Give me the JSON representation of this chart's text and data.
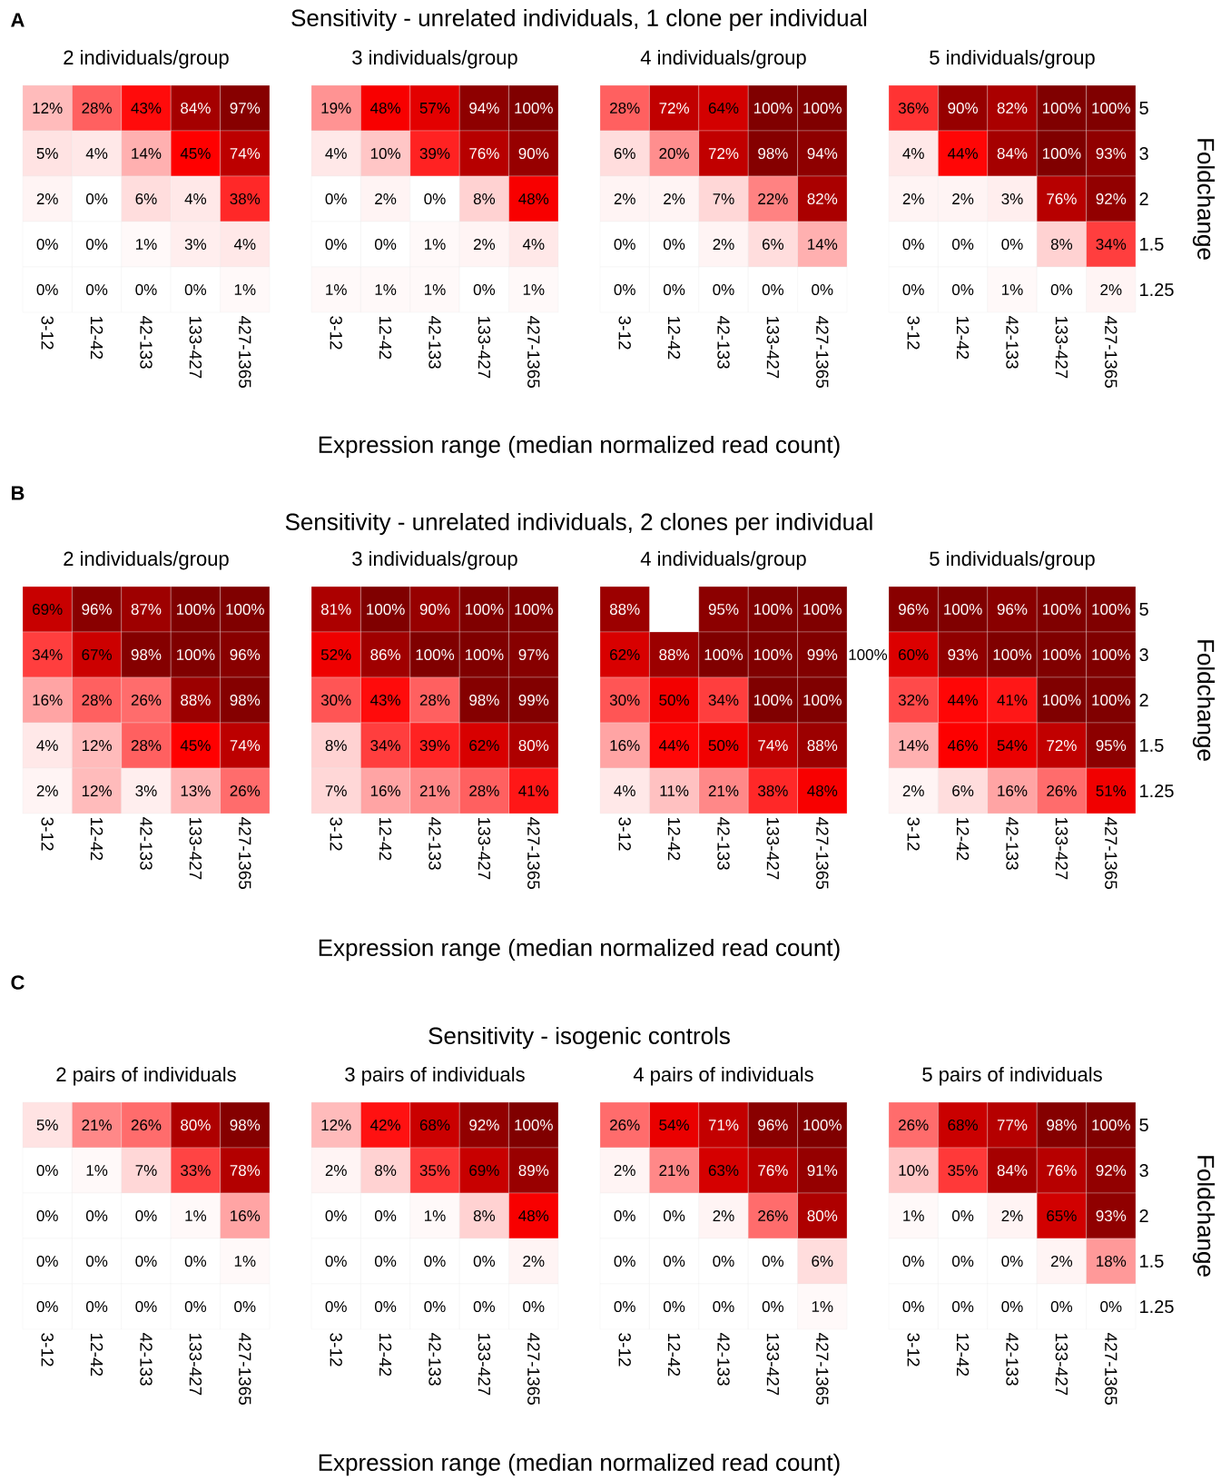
{
  "chart_data": [
    {
      "type": "heatmap",
      "title": "2 individuals/group",
      "annotations": [
        "A",
        "Sensitivity - unrelated individuals, 1 clone per individual"
      ],
      "xlabel": "Expression range (median normalized read count)",
      "tick_labels": "x",
      "categories": [
        "3-12",
        "12-42",
        "42-133",
        "133-427",
        "427-1365"
      ],
      "y_categories": [
        "5",
        "3",
        "2",
        "1.5",
        "1.25"
      ],
      "cells": [
        [
          12,
          28,
          43,
          84,
          97
        ],
        [
          5,
          4,
          14,
          45,
          74
        ],
        [
          2,
          0,
          6,
          4,
          38
        ],
        [
          0,
          0,
          1,
          3,
          4
        ],
        [
          0,
          0,
          0,
          0,
          1
        ]
      ],
      "cell_labels": [
        [
          "12%",
          "28%",
          "43%",
          "84%",
          "97%"
        ],
        [
          "5%",
          "4%",
          "14%",
          "45%",
          "74%"
        ],
        [
          "2%",
          "0%",
          "6%",
          "4%",
          "38%"
        ],
        [
          "0%",
          "0%",
          "1%",
          "3%",
          "4%"
        ],
        [
          "0%",
          "0%",
          "0%",
          "0%",
          "1%"
        ]
      ]
    },
    {
      "type": "heatmap",
      "title": "3 individuals/group",
      "tick_labels": "x",
      "categories": [
        "3-12",
        "12-42",
        "42-133",
        "133-427",
        "427-1365"
      ],
      "y_categories": [
        "5",
        "3",
        "2",
        "1.5",
        "1.25"
      ],
      "cells": [
        [
          19,
          48,
          57,
          94,
          100
        ],
        [
          4,
          10,
          39,
          76,
          90
        ],
        [
          0,
          2,
          0,
          8,
          48
        ],
        [
          0,
          0,
          1,
          2,
          4
        ],
        [
          1,
          1,
          1,
          0,
          1
        ]
      ],
      "cell_labels": [
        [
          "19%",
          "48%",
          "57%",
          "94%",
          "100%"
        ],
        [
          "4%",
          "10%",
          "39%",
          "76%",
          "90%"
        ],
        [
          "0%",
          "2%",
          "0%",
          "8%",
          "48%"
        ],
        [
          "0%",
          "0%",
          "1%",
          "2%",
          "4%"
        ],
        [
          "1%",
          "1%",
          "1%",
          "0%",
          "1%"
        ]
      ]
    },
    {
      "type": "heatmap",
      "title": "4 individuals/group",
      "tick_labels": "x",
      "categories": [
        "3-12",
        "12-42",
        "42-133",
        "133-427",
        "427-1365"
      ],
      "y_categories": [
        "5",
        "3",
        "2",
        "1.5",
        "1.25"
      ],
      "cells": [
        [
          28,
          72,
          64,
          100,
          100
        ],
        [
          6,
          20,
          72,
          98,
          94
        ],
        [
          2,
          2,
          7,
          22,
          82
        ],
        [
          0,
          0,
          2,
          6,
          14
        ],
        [
          0,
          0,
          0,
          0,
          0
        ]
      ],
      "cell_labels": [
        [
          "28%",
          "72%",
          "64%",
          "100%",
          "100%"
        ],
        [
          "6%",
          "20%",
          "72%",
          "98%",
          "94%"
        ],
        [
          "2%",
          "2%",
          "7%",
          "22%",
          "82%"
        ],
        [
          "0%",
          "0%",
          "2%",
          "6%",
          "14%"
        ],
        [
          "0%",
          "0%",
          "0%",
          "0%",
          "0%"
        ]
      ]
    },
    {
      "type": "heatmap",
      "title": "5 individuals/group",
      "ylabel": "Foldchange",
      "categories": [
        "3-12",
        "12-42",
        "42-133",
        "133-427",
        "427-1365"
      ],
      "y_categories": [
        "5",
        "3",
        "2",
        "1.5",
        "1.25"
      ],
      "cells": [
        [
          36,
          90,
          82,
          100,
          100
        ],
        [
          4,
          44,
          84,
          100,
          93
        ],
        [
          2,
          2,
          3,
          76,
          92
        ],
        [
          0,
          0,
          0,
          8,
          34
        ],
        [
          0,
          0,
          1,
          0,
          2
        ]
      ],
      "cell_labels": [
        [
          "36%",
          "90%",
          "82%",
          "100%",
          "100%"
        ],
        [
          "4%",
          "44%",
          "84%",
          "100%",
          "93%"
        ],
        [
          "2%",
          "2%",
          "3%",
          "76%",
          "92%"
        ],
        [
          "0%",
          "0%",
          "0%",
          "8%",
          "34%"
        ],
        [
          "0%",
          "0%",
          "1%",
          "0%",
          "2%"
        ]
      ]
    },
    {
      "type": "heatmap",
      "title": "2 individuals/group",
      "annotations": [
        "B",
        "Sensitivity - unrelated individuals, 2 clones per individual"
      ],
      "xlabel": "Expression range (median normalized read count)",
      "tick_labels": "x",
      "categories": [
        "3-12",
        "12-42",
        "42-133",
        "133-427",
        "427-1365"
      ],
      "y_categories": [
        "5",
        "3",
        "2",
        "1.5",
        "1.25"
      ],
      "cells": [
        [
          69,
          96,
          87,
          100,
          100
        ],
        [
          34,
          67,
          98,
          100,
          96
        ],
        [
          16,
          28,
          26,
          88,
          98
        ],
        [
          4,
          12,
          28,
          45,
          74
        ],
        [
          2,
          12,
          3,
          13,
          26
        ]
      ],
      "cell_labels": [
        [
          "69%",
          "96%",
          "87%",
          "100%",
          "100%"
        ],
        [
          "34%",
          "67%",
          "98%",
          "100%",
          "96%"
        ],
        [
          "16%",
          "28%",
          "26%",
          "88%",
          "98%"
        ],
        [
          "4%",
          "12%",
          "28%",
          "45%",
          "74%"
        ],
        [
          "2%",
          "12%",
          "3%",
          "13%",
          "26%"
        ]
      ]
    },
    {
      "type": "heatmap",
      "title": "3 individuals/group",
      "tick_labels": "x",
      "categories": [
        "3-12",
        "12-42",
        "42-133",
        "133-427",
        "427-1365"
      ],
      "y_categories": [
        "5",
        "3",
        "2",
        "1.5",
        "1.25"
      ],
      "cells": [
        [
          81,
          100,
          90,
          100,
          100
        ],
        [
          52,
          86,
          100,
          100,
          97
        ],
        [
          30,
          43,
          28,
          98,
          99
        ],
        [
          8,
          34,
          39,
          62,
          80
        ],
        [
          7,
          16,
          21,
          28,
          41
        ]
      ],
      "cell_labels": [
        [
          "81%",
          "100%",
          "90%",
          "100%",
          "100%"
        ],
        [
          "52%",
          "86%",
          "100%",
          "100%",
          "97%"
        ],
        [
          "30%",
          "43%",
          "28%",
          "98%",
          "99%"
        ],
        [
          "8%",
          "34%",
          "39%",
          "62%",
          "80%"
        ],
        [
          "7%",
          "16%",
          "21%",
          "28%",
          "41%"
        ]
      ]
    },
    {
      "type": "heatmap",
      "title": "4 individuals/group",
      "tick_labels": "x",
      "annotations": [
        "100%"
      ],
      "categories": [
        "3-12",
        "12-42",
        "42-133",
        "133-427",
        "427-1365"
      ],
      "y_categories": [
        "5",
        "3",
        "2",
        "1.5",
        "1.25"
      ],
      "cells": [
        [
          88,
          null,
          95,
          100,
          100
        ],
        [
          62,
          88,
          100,
          100,
          99
        ],
        [
          30,
          50,
          34,
          100,
          100
        ],
        [
          16,
          44,
          50,
          74,
          88
        ],
        [
          4,
          11,
          21,
          38,
          48
        ]
      ],
      "cell_labels": [
        [
          "88%",
          null,
          "95%",
          "100%",
          "100%"
        ],
        [
          "62%",
          "88%",
          "100%",
          "100%",
          "99%"
        ],
        [
          "30%",
          "50%",
          "34%",
          "100%",
          "100%"
        ],
        [
          "16%",
          "44%",
          "50%",
          "74%",
          "88%"
        ],
        [
          "4%",
          "11%",
          "21%",
          "38%",
          "48%"
        ]
      ]
    },
    {
      "type": "heatmap",
      "title": "5 individuals/group",
      "ylabel": "Foldchange",
      "categories": [
        "3-12",
        "12-42",
        "42-133",
        "133-427",
        "427-1365"
      ],
      "y_categories": [
        "5",
        "3",
        "2",
        "1.5",
        "1.25"
      ],
      "cells": [
        [
          96,
          100,
          96,
          100,
          100
        ],
        [
          60,
          93,
          100,
          100,
          100
        ],
        [
          32,
          44,
          41,
          100,
          100
        ],
        [
          14,
          46,
          54,
          72,
          95
        ],
        [
          2,
          6,
          16,
          26,
          51
        ]
      ],
      "cell_labels": [
        [
          "96%",
          "100%",
          "96%",
          "100%",
          "100%"
        ],
        [
          "60%",
          "93%",
          "100%",
          "100%",
          "100%"
        ],
        [
          "32%",
          "44%",
          "41%",
          "100%",
          "100%"
        ],
        [
          "14%",
          "46%",
          "54%",
          "72%",
          "95%"
        ],
        [
          "2%",
          "6%",
          "16%",
          "26%",
          "51%"
        ]
      ]
    },
    {
      "type": "heatmap",
      "title": "2 pairs of individuals",
      "annotations": [
        "C",
        "Sensitivity - isogenic controls"
      ],
      "xlabel": "Expression range (median normalized read count)",
      "tick_labels": "x",
      "categories": [
        "3-12",
        "12-42",
        "42-133",
        "133-427",
        "427-1365"
      ],
      "y_categories": [
        "5",
        "3",
        "2",
        "1.5",
        "1.25"
      ],
      "cells": [
        [
          5,
          21,
          26,
          80,
          98
        ],
        [
          0,
          1,
          7,
          33,
          78
        ],
        [
          0,
          0,
          0,
          1,
          16
        ],
        [
          0,
          0,
          0,
          0,
          1
        ],
        [
          0,
          0,
          0,
          0,
          0
        ]
      ],
      "cell_labels": [
        [
          "5%",
          "21%",
          "26%",
          "80%",
          "98%"
        ],
        [
          "0%",
          "1%",
          "7%",
          "33%",
          "78%"
        ],
        [
          "0%",
          "0%",
          "0%",
          "1%",
          "16%"
        ],
        [
          "0%",
          "0%",
          "0%",
          "0%",
          "1%"
        ],
        [
          "0%",
          "0%",
          "0%",
          "0%",
          "0%"
        ]
      ]
    },
    {
      "type": "heatmap",
      "title": "3 pairs of individuals",
      "tick_labels": "x",
      "categories": [
        "3-12",
        "12-42",
        "42-133",
        "133-427",
        "427-1365"
      ],
      "y_categories": [
        "5",
        "3",
        "2",
        "1.5",
        "1.25"
      ],
      "cells": [
        [
          12,
          42,
          68,
          92,
          100
        ],
        [
          2,
          8,
          35,
          69,
          89
        ],
        [
          0,
          0,
          1,
          8,
          48
        ],
        [
          0,
          0,
          0,
          0,
          2
        ],
        [
          0,
          0,
          0,
          0,
          0
        ]
      ],
      "cell_labels": [
        [
          "12%",
          "42%",
          "68%",
          "92%",
          "100%"
        ],
        [
          "2%",
          "8%",
          "35%",
          "69%",
          "89%"
        ],
        [
          "0%",
          "0%",
          "1%",
          "8%",
          "48%"
        ],
        [
          "0%",
          "0%",
          "0%",
          "0%",
          "2%"
        ],
        [
          "0%",
          "0%",
          "0%",
          "0%",
          "0%"
        ]
      ]
    },
    {
      "type": "heatmap",
      "title": "4 pairs of individuals",
      "tick_labels": "x",
      "categories": [
        "3-12",
        "12-42",
        "42-133",
        "133-427",
        "427-1365"
      ],
      "y_categories": [
        "5",
        "3",
        "2",
        "1.5",
        "1.25"
      ],
      "cells": [
        [
          26,
          54,
          71,
          96,
          100
        ],
        [
          2,
          21,
          63,
          76,
          91
        ],
        [
          0,
          0,
          2,
          26,
          80
        ],
        [
          0,
          0,
          0,
          0,
          6
        ],
        [
          0,
          0,
          0,
          0,
          1
        ]
      ],
      "cell_labels": [
        [
          "26%",
          "54%",
          "71%",
          "96%",
          "100%"
        ],
        [
          "2%",
          "21%",
          "63%",
          "76%",
          "91%"
        ],
        [
          "0%",
          "0%",
          "2%",
          "26%",
          "80%"
        ],
        [
          "0%",
          "0%",
          "0%",
          "0%",
          "6%"
        ],
        [
          "0%",
          "0%",
          "0%",
          "0%",
          "1%"
        ]
      ]
    },
    {
      "type": "heatmap",
      "title": "5 pairs of individuals",
      "ylabel": "Foldchange",
      "categories": [
        "3-12",
        "12-42",
        "42-133",
        "133-427",
        "427-1365"
      ],
      "y_categories": [
        "5",
        "3",
        "2",
        "1.5",
        "1.25"
      ],
      "cells": [
        [
          26,
          68,
          77,
          98,
          100
        ],
        [
          10,
          35,
          84,
          76,
          92
        ],
        [
          1,
          0,
          2,
          65,
          93
        ],
        [
          0,
          0,
          0,
          2,
          18
        ],
        [
          0,
          0,
          0,
          0,
          0
        ]
      ],
      "cell_labels": [
        [
          "26%",
          "68%",
          "77%",
          "98%",
          "100%"
        ],
        [
          "10%",
          "35%",
          "84%",
          "76%",
          "92%"
        ],
        [
          "1%",
          "0%",
          "2%",
          "65%",
          "93%"
        ],
        [
          "0%",
          "0%",
          "0%",
          "2%",
          "18%"
        ],
        [
          "0%",
          "0%",
          "0%",
          "0%",
          "0%"
        ]
      ]
    }
  ]
}
